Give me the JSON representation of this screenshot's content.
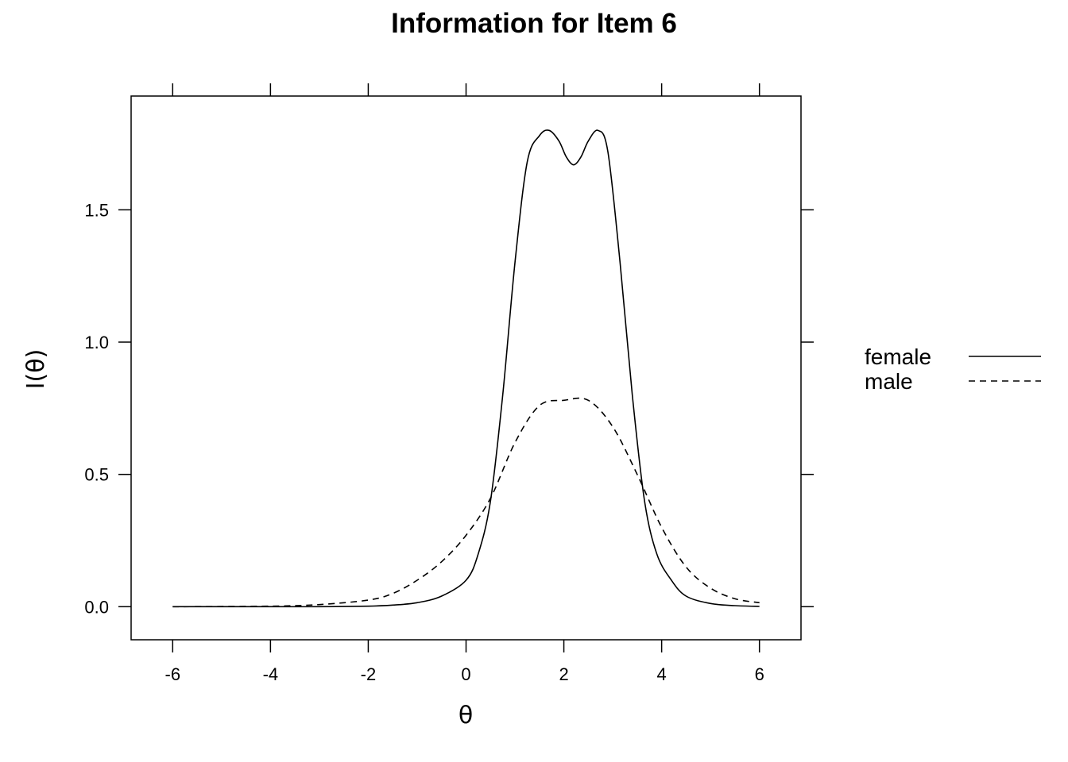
{
  "chart_data": {
    "type": "line",
    "title": "Information for Item 6",
    "xlabel": "θ",
    "ylabel": "I(θ)",
    "xlim": [
      -6.85,
      6.85
    ],
    "ylim": [
      -0.125,
      1.93
    ],
    "xticks": [
      -6,
      -4,
      -2,
      0,
      2,
      4,
      6
    ],
    "xtick_labels": [
      "-6",
      "-4",
      "-2",
      "0",
      "2",
      "4",
      "6"
    ],
    "yticks": [
      0,
      0.5,
      1,
      1.5
    ],
    "ytick_labels": [
      "0.0",
      "0.5",
      "1.0",
      "1.5"
    ],
    "grid": false,
    "legend": {
      "position": "right"
    },
    "series": [
      {
        "name": "female",
        "dash": "solid",
        "x": [
          -6,
          -4,
          -3,
          -2,
          -1.5,
          -1,
          -0.5,
          0,
          0.25,
          0.5,
          0.75,
          1,
          1.25,
          1.5,
          1.7,
          1.9,
          2.05,
          2.2,
          2.35,
          2.5,
          2.7,
          2.9,
          3.15,
          3.4,
          3.65,
          3.9,
          4.2,
          4.5,
          5,
          5.5,
          6
        ],
        "y": [
          0,
          0,
          0,
          0.002,
          0.006,
          0.015,
          0.04,
          0.1,
          0.2,
          0.4,
          0.8,
          1.3,
          1.68,
          1.78,
          1.8,
          1.76,
          1.7,
          1.67,
          1.7,
          1.76,
          1.8,
          1.72,
          1.3,
          0.8,
          0.4,
          0.2,
          0.1,
          0.04,
          0.012,
          0.004,
          0.001
        ]
      },
      {
        "name": "male",
        "dash": "dashed",
        "x": [
          -6,
          -4,
          -3,
          -2,
          -1.5,
          -1,
          -0.5,
          0,
          0.5,
          1,
          1.5,
          2,
          2.5,
          3,
          3.5,
          4,
          4.5,
          5,
          5.5,
          6
        ],
        "y": [
          0,
          0.002,
          0.008,
          0.025,
          0.05,
          0.1,
          0.17,
          0.27,
          0.41,
          0.62,
          0.76,
          0.78,
          0.78,
          0.68,
          0.5,
          0.3,
          0.15,
          0.07,
          0.03,
          0.015
        ]
      }
    ]
  }
}
